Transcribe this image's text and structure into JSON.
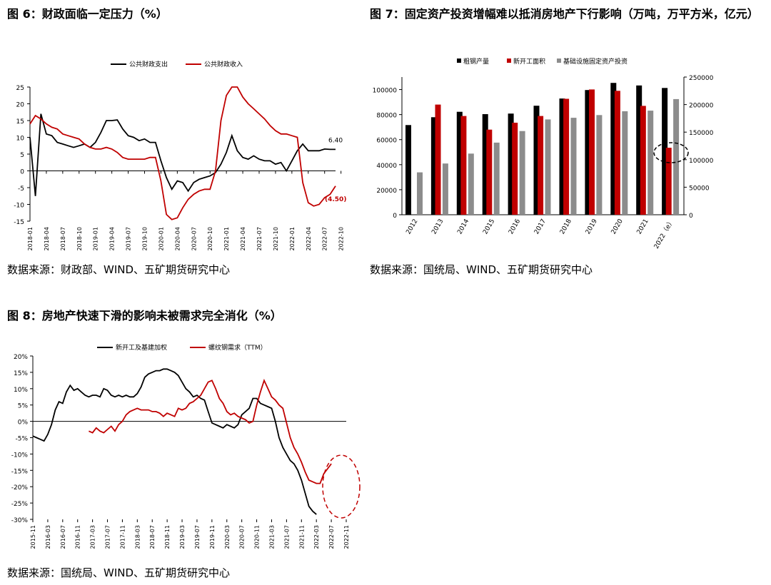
{
  "figures": [
    {
      "title": "图 6：财政面临一定压力（%）",
      "source": "数据来源：财政部、WIND、五矿期货研究中心"
    },
    {
      "title": "图 7：固定资产投资增幅难以抵消房地产下行影响（万吨，万平方米，亿元）",
      "source": "数据来源：国统局、WIND、五矿期货研究中心"
    },
    {
      "title": "图 8：房地产快速下滑的影响未被需求完全消化（%）",
      "source": "数据来源：国统局、WIND、五矿期货研究中心"
    }
  ],
  "chart_data": [
    {
      "type": "line",
      "yticks": [
        "-15",
        "-10",
        "-5",
        "0",
        "5",
        "10",
        "15",
        "20",
        "25"
      ],
      "ylim": [
        -15,
        25
      ],
      "xticks": [
        "2018-01",
        "2018-04",
        "2018-07",
        "2018-10",
        "2019-01",
        "2019-04",
        "2019-07",
        "2019-10",
        "2020-01",
        "2020-04",
        "2020-07",
        "2020-10",
        "2021-01",
        "2021-04",
        "2021-07",
        "2021-10",
        "2022-01",
        "2022-04",
        "2022-07",
        "2022-10"
      ],
      "annotations": [
        "6.40",
        "(4.50)"
      ],
      "colors": {
        "series1": "#000000",
        "series2": "#c00000"
      },
      "series": [
        {
          "name": "公共财政支出",
          "values": [
            10.0,
            -7.5,
            17.0,
            11.0,
            10.5,
            8.5,
            8.0,
            7.5,
            7.0,
            7.5,
            8.0,
            7.0,
            8.5,
            11.5,
            15.0,
            15.0,
            15.2,
            12.5,
            10.5,
            10.0,
            9.0,
            9.5,
            8.5,
            8.5,
            3.0,
            -2.0,
            -5.5,
            -3.0,
            -3.5,
            -6.0,
            -3.5,
            -2.5,
            -2.0,
            -1.5,
            -0.5,
            2.0,
            5.5,
            10.5,
            6.0,
            4.0,
            3.5,
            4.5,
            3.5,
            3.0,
            3.0,
            2.0,
            2.5,
            0.0,
            3.0,
            6.0,
            8.0,
            6.0,
            6.0,
            6.0,
            6.5,
            6.4,
            6.4
          ]
        },
        {
          "name": "公共财政收入",
          "values": [
            14.0,
            16.5,
            15.5,
            14.0,
            13.0,
            12.5,
            11.0,
            10.5,
            10.0,
            9.5,
            8.0,
            7.0,
            6.5,
            6.5,
            7.0,
            6.5,
            5.5,
            4.0,
            3.5,
            3.5,
            3.5,
            3.5,
            4.0,
            4.0,
            -3.0,
            -13.0,
            -14.5,
            -14.0,
            -11.0,
            -8.5,
            -7.0,
            -6.0,
            -5.5,
            -5.5,
            0.0,
            15.0,
            22.5,
            25.0,
            25.0,
            22.0,
            20.0,
            18.5,
            17.0,
            15.5,
            13.5,
            12.0,
            11.0,
            11.0,
            10.5,
            10.0,
            -3.5,
            -9.5,
            -10.5,
            -10.0,
            -8.0,
            -7.0,
            -4.5
          ]
        }
      ]
    },
    {
      "type": "bar",
      "categories": [
        "2012",
        "2013",
        "2014",
        "2015",
        "2016",
        "2017",
        "2018",
        "2019",
        "2020",
        "2021",
        "2022（e）"
      ],
      "yleft_ticks": [
        "0",
        "20000",
        "40000",
        "60000",
        "80000",
        "100000"
      ],
      "yleft_lim": [
        0,
        110000
      ],
      "yright_ticks": [
        "0",
        "50000",
        "100000",
        "150000",
        "200000",
        "250000"
      ],
      "yright_lim": [
        0,
        250000
      ],
      "colors": {
        "steel": "#000000",
        "newstart": "#c00000",
        "infra": "#8c8c8c"
      },
      "series": [
        {
          "name": "粗钢产量",
          "axis": "left",
          "values": [
            71654,
            77904,
            82231,
            80383,
            80837,
            87074,
            92826,
            99634,
            105300,
            103279,
            101300
          ]
        },
        {
          "name": "新开工面积",
          "axis": "left",
          "values": [
            null,
            88000,
            78900,
            68000,
            73500,
            78900,
            92600,
            100100,
            99000,
            87000,
            53500
          ]
        },
        {
          "name": "基础设施固定资产投资",
          "axis": "right",
          "values": [
            77000,
            93000,
            111000,
            131000,
            152000,
            173000,
            176000,
            181000,
            188000,
            189000,
            210000
          ]
        }
      ]
    },
    {
      "type": "line",
      "yticks": [
        "20%",
        "15%",
        "10%",
        "5%",
        "0%",
        "-5%",
        "-10%",
        "-15%",
        "-20%",
        "-25%",
        "-30%"
      ],
      "ylim": [
        -30,
        20
      ],
      "xticks": [
        "2015-11",
        "2016-03",
        "2016-07",
        "2016-11",
        "2017-03",
        "2017-07",
        "2017-11",
        "2018-03",
        "2018-07",
        "2018-11",
        "2019-03",
        "2019-07",
        "2019-11",
        "2020-03",
        "2020-07",
        "2020-11",
        "2021-03",
        "2021-07",
        "2021-11",
        "2022-03",
        "2022-07",
        "2022-11"
      ],
      "colors": {
        "series1": "#000000",
        "series2": "#c00000"
      },
      "series": [
        {
          "name": "新开工及基建加权",
          "start": "2015-11",
          "values": [
            -4.5,
            -5.0,
            -5.5,
            -6.0,
            -4.0,
            -1.0,
            3.5,
            6.0,
            5.5,
            9.0,
            11.0,
            9.5,
            10.0,
            9.0,
            8.0,
            7.5,
            8.0,
            8.0,
            7.5,
            10.0,
            9.5,
            8.0,
            7.5,
            8.0,
            7.5,
            8.0,
            7.5,
            7.5,
            8.5,
            10.5,
            13.5,
            14.5,
            15.0,
            15.5,
            15.5,
            16.0,
            16.0,
            15.5,
            15.0,
            14.0,
            12.0,
            10.0,
            9.0,
            7.5,
            8.0,
            7.0,
            6.5,
            3.0,
            -0.5,
            -1.0,
            -1.5,
            -2.0,
            -1.0,
            -1.5,
            -2.0,
            -1.0,
            2.0,
            3.0,
            4.0,
            7.0,
            7.0,
            5.5,
            5.0,
            4.5,
            4.0,
            0.0,
            -5.0,
            -8.0,
            -10.0,
            -12.0,
            -13.0,
            -15.0,
            -18.0,
            -22.0,
            -26.0,
            -27.5,
            -28.5
          ]
        },
        {
          "name": "螺纹钢需求（TTM）",
          "start": "2017-02",
          "values": [
            -3.0,
            -3.5,
            -2.0,
            -3.0,
            -3.5,
            -2.5,
            -1.5,
            -3.0,
            -1.0,
            0.0,
            2.0,
            3.0,
            3.5,
            4.0,
            3.5,
            3.5,
            3.5,
            3.0,
            3.0,
            2.5,
            1.5,
            2.5,
            2.0,
            1.5,
            4.0,
            3.5,
            4.0,
            5.5,
            6.0,
            7.0,
            8.0,
            10.0,
            12.0,
            12.5,
            10.0,
            7.0,
            5.5,
            3.0,
            2.0,
            2.5,
            1.5,
            1.0,
            0.5,
            -0.5,
            0.0,
            5.0,
            9.0,
            12.5,
            10.0,
            7.5,
            6.5,
            5.0,
            4.0,
            -0.5,
            -5.0,
            -8.0,
            -10.0,
            -12.5,
            -15.5,
            -18.0,
            -18.5,
            -19.0,
            -19.0,
            -16.0,
            -14.5,
            -13.0
          ]
        }
      ]
    }
  ]
}
